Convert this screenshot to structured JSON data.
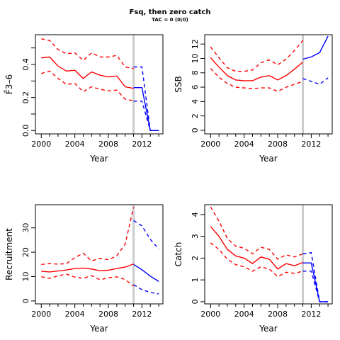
{
  "title": "Fsq, then zero catch",
  "subtitle": "TAC = 0 (0;0)",
  "colors": {
    "historic": "#ff0000",
    "projection": "#0000ff",
    "divider": "#cccccc",
    "axis": "#000000"
  },
  "chart_data": [
    {
      "type": "line",
      "ylabel": "F̄3–6",
      "xlabel": "Year",
      "xlim": [
        1999.3,
        2014.5
      ],
      "ylim": [
        -0.02,
        0.58
      ],
      "xticks": [
        2000,
        2004,
        2008,
        2012
      ],
      "yticks": [
        0.0,
        0.1,
        0.2,
        0.3,
        0.4,
        0.5
      ],
      "ytick_labels": [
        "0.0",
        "",
        "0.2",
        "",
        "0.4",
        ""
      ],
      "divider": 2011,
      "series": [
        {
          "role": "historic",
          "dash": false,
          "x": [
            2000,
            2001,
            2002,
            2003,
            2004,
            2005,
            2006,
            2007,
            2008,
            2009,
            2010,
            2011
          ],
          "y": [
            0.44,
            0.445,
            0.39,
            0.36,
            0.365,
            0.315,
            0.355,
            0.335,
            0.325,
            0.33,
            0.265,
            0.255
          ]
        },
        {
          "role": "historic",
          "dash": true,
          "x": [
            2000,
            2001,
            2002,
            2003,
            2004,
            2005,
            2006,
            2007,
            2008,
            2009,
            2010,
            2011
          ],
          "y": [
            0.555,
            0.545,
            0.49,
            0.465,
            0.47,
            0.425,
            0.47,
            0.445,
            0.445,
            0.455,
            0.385,
            0.375
          ]
        },
        {
          "role": "historic",
          "dash": true,
          "x": [
            2000,
            2001,
            2002,
            2003,
            2004,
            2005,
            2006,
            2007,
            2008,
            2009,
            2010,
            2011
          ],
          "y": [
            0.345,
            0.36,
            0.315,
            0.28,
            0.285,
            0.235,
            0.265,
            0.25,
            0.24,
            0.245,
            0.19,
            0.18
          ]
        },
        {
          "role": "projection",
          "dash": false,
          "x": [
            2011,
            2012,
            2013,
            2014
          ],
          "y": [
            0.26,
            0.26,
            0.0,
            0.0
          ]
        },
        {
          "role": "projection",
          "dash": true,
          "x": [
            2011,
            2012,
            2013,
            2014
          ],
          "y": [
            0.385,
            0.385,
            0.0,
            0.0
          ]
        },
        {
          "role": "projection",
          "dash": true,
          "x": [
            2011,
            2012,
            2013,
            2014
          ],
          "y": [
            0.178,
            0.178,
            0.0,
            0.0
          ]
        }
      ]
    },
    {
      "type": "line",
      "ylabel": "SSB",
      "xlabel": "Year",
      "xlim": [
        1999.3,
        2014.5
      ],
      "ylim": [
        -0.5,
        13.3
      ],
      "xticks": [
        2000,
        2004,
        2008,
        2012
      ],
      "yticks": [
        0,
        2,
        4,
        6,
        8,
        10,
        12
      ],
      "ytick_labels": [
        "0",
        "2",
        "4",
        "6",
        "8",
        "10",
        "12"
      ],
      "divider": 2011,
      "series": [
        {
          "role": "historic",
          "dash": false,
          "x": [
            2000,
            2001,
            2002,
            2003,
            2004,
            2005,
            2006,
            2007,
            2008,
            2009,
            2010,
            2011
          ],
          "y": [
            10.1,
            8.8,
            7.6,
            7.0,
            6.9,
            6.9,
            7.4,
            7.6,
            7.0,
            7.6,
            8.5,
            9.5
          ]
        },
        {
          "role": "historic",
          "dash": true,
          "x": [
            2000,
            2001,
            2002,
            2003,
            2004,
            2005,
            2006,
            2007,
            2008,
            2009,
            2010,
            2011
          ],
          "y": [
            11.6,
            10.1,
            8.7,
            8.2,
            8.2,
            8.4,
            9.4,
            9.8,
            9.1,
            9.9,
            11.1,
            12.5
          ]
        },
        {
          "role": "historic",
          "dash": true,
          "x": [
            2000,
            2001,
            2002,
            2003,
            2004,
            2005,
            2006,
            2007,
            2008,
            2009,
            2010,
            2011
          ],
          "y": [
            8.6,
            7.4,
            6.5,
            6.0,
            5.9,
            5.8,
            5.9,
            5.9,
            5.4,
            6.0,
            6.4,
            6.8
          ]
        },
        {
          "role": "projection",
          "dash": false,
          "x": [
            2011,
            2012,
            2013,
            2014
          ],
          "y": [
            9.9,
            10.2,
            10.8,
            13.1
          ]
        },
        {
          "role": "projection",
          "dash": true,
          "x": [
            2011,
            2012,
            2013,
            2014
          ],
          "y": [
            7.2,
            6.8,
            6.4,
            7.3
          ]
        }
      ]
    },
    {
      "type": "line",
      "ylabel": "Recruitment",
      "xlabel": "Year",
      "xlim": [
        1999.3,
        2014.5
      ],
      "ylim": [
        -1.2,
        39.5
      ],
      "xticks": [
        2000,
        2004,
        2008,
        2012
      ],
      "yticks": [
        0,
        10,
        20,
        30
      ],
      "ytick_labels": [
        "0",
        "10",
        "20",
        "30"
      ],
      "divider": 2011,
      "series": [
        {
          "role": "historic",
          "dash": false,
          "x": [
            2000,
            2001,
            2002,
            2003,
            2004,
            2005,
            2006,
            2007,
            2008,
            2009,
            2010,
            2011
          ],
          "y": [
            12.2,
            11.9,
            12.3,
            12.7,
            13.3,
            13.5,
            13.1,
            12.4,
            12.6,
            13.3,
            13.9,
            15.2
          ]
        },
        {
          "role": "historic",
          "dash": true,
          "x": [
            2000,
            2001,
            2002,
            2003,
            2004,
            2005,
            2006,
            2007,
            2008,
            2009,
            2010,
            2011
          ],
          "y": [
            15.0,
            15.3,
            15.1,
            15.3,
            17.8,
            19.6,
            16.4,
            17.5,
            16.9,
            18.5,
            23.3,
            38.5
          ]
        },
        {
          "role": "historic",
          "dash": true,
          "x": [
            2000,
            2001,
            2002,
            2003,
            2004,
            2005,
            2006,
            2007,
            2008,
            2009,
            2010,
            2011
          ],
          "y": [
            9.9,
            9.3,
            10.3,
            11.0,
            9.8,
            9.3,
            10.4,
            8.7,
            9.5,
            9.9,
            8.8,
            6.1
          ]
        },
        {
          "role": "projection",
          "dash": false,
          "x": [
            2011,
            2012,
            2013,
            2014
          ],
          "y": [
            15.0,
            12.8,
            10.2,
            8.0
          ]
        },
        {
          "role": "projection",
          "dash": true,
          "x": [
            2011,
            2012,
            2013,
            2014
          ],
          "y": [
            33.0,
            30.8,
            25.3,
            21.3
          ]
        },
        {
          "role": "projection",
          "dash": true,
          "x": [
            2011,
            2012,
            2013,
            2014
          ],
          "y": [
            6.7,
            4.6,
            3.5,
            2.9
          ]
        }
      ]
    },
    {
      "type": "line",
      "ylabel": "Catch",
      "xlabel": "Year",
      "xlim": [
        1999.3,
        2014.5
      ],
      "ylim": [
        -0.1,
        4.45
      ],
      "xticks": [
        2000,
        2004,
        2008,
        2012
      ],
      "yticks": [
        0,
        1,
        2,
        3,
        4
      ],
      "ytick_labels": [
        "0",
        "1",
        "2",
        "3",
        "4"
      ],
      "divider": 2011,
      "series": [
        {
          "role": "historic",
          "dash": false,
          "x": [
            2000,
            2001,
            2002,
            2003,
            2004,
            2005,
            2006,
            2007,
            2008,
            2009,
            2010,
            2011
          ],
          "y": [
            3.45,
            3.0,
            2.4,
            2.1,
            2.0,
            1.75,
            2.05,
            1.95,
            1.5,
            1.75,
            1.65,
            1.8
          ]
        },
        {
          "role": "historic",
          "dash": true,
          "x": [
            2000,
            2001,
            2002,
            2003,
            2004,
            2005,
            2006,
            2007,
            2008,
            2009,
            2010,
            2011
          ],
          "y": [
            4.35,
            3.7,
            2.9,
            2.55,
            2.45,
            2.2,
            2.5,
            2.4,
            1.95,
            2.15,
            2.05,
            2.2
          ]
        },
        {
          "role": "historic",
          "dash": true,
          "x": [
            2000,
            2001,
            2002,
            2003,
            2004,
            2005,
            2006,
            2007,
            2008,
            2009,
            2010,
            2011
          ],
          "y": [
            2.7,
            2.4,
            1.95,
            1.7,
            1.6,
            1.4,
            1.6,
            1.5,
            1.15,
            1.35,
            1.3,
            1.4
          ]
        },
        {
          "role": "projection",
          "dash": false,
          "x": [
            2011,
            2012,
            2013,
            2014
          ],
          "y": [
            1.78,
            1.78,
            0.0,
            0.0
          ]
        },
        {
          "role": "projection",
          "dash": true,
          "x": [
            2011,
            2012,
            2013,
            2014
          ],
          "y": [
            2.2,
            2.25,
            0.0,
            0.0
          ]
        },
        {
          "role": "projection",
          "dash": true,
          "x": [
            2011,
            2012,
            2013,
            2014
          ],
          "y": [
            1.4,
            1.4,
            0.0,
            0.0
          ]
        }
      ]
    }
  ]
}
